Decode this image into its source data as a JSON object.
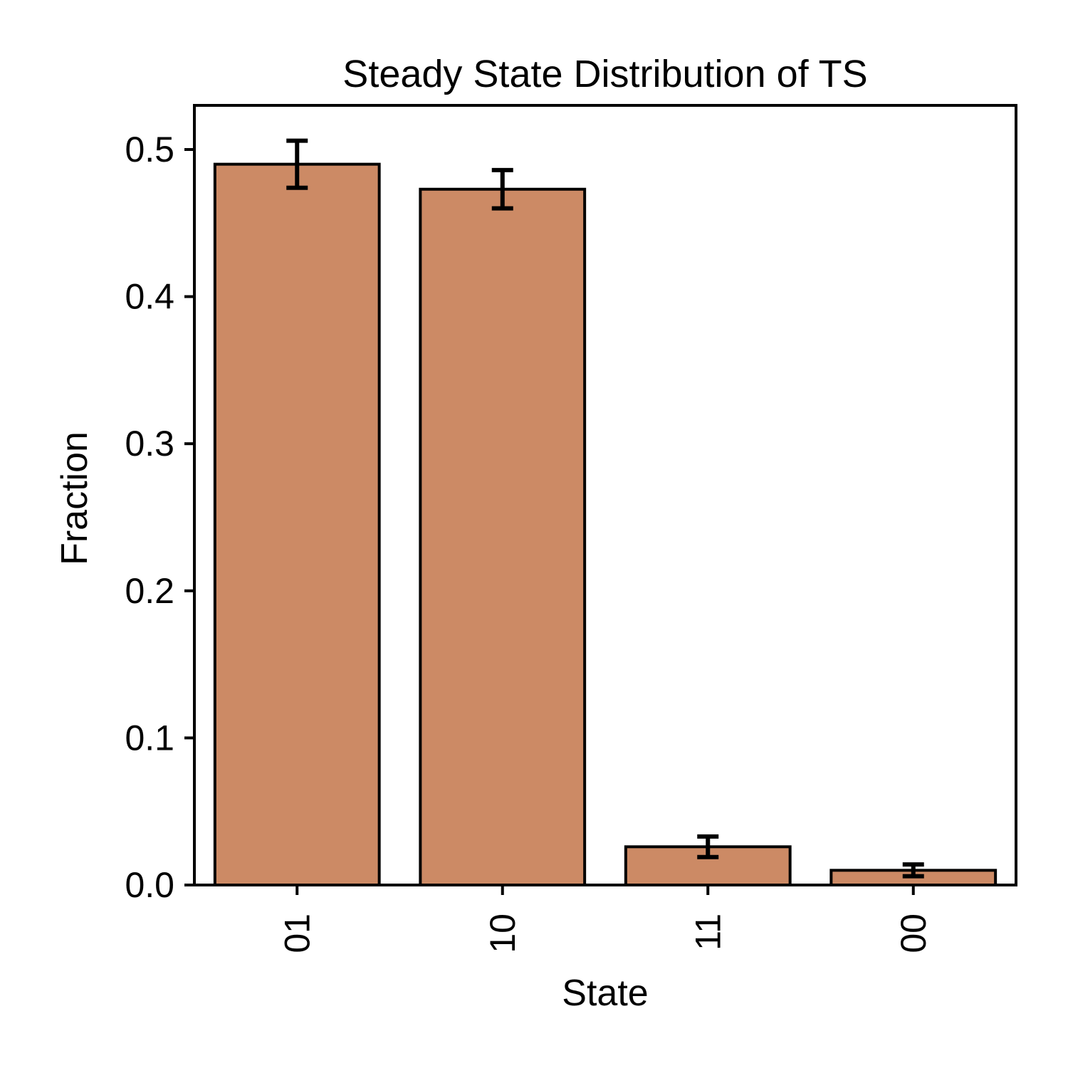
{
  "chart_data": {
    "type": "bar",
    "title": "Steady State Distribution of TS",
    "xlabel": "State",
    "ylabel": "Fraction",
    "categories": [
      "01",
      "10",
      "11",
      "00"
    ],
    "values": [
      0.49,
      0.473,
      0.026,
      0.01
    ],
    "errors": [
      0.016,
      0.013,
      0.007,
      0.004
    ],
    "ylim": [
      0,
      0.53
    ],
    "yticks": [
      "0.0",
      "0.1",
      "0.2",
      "0.3",
      "0.4",
      "0.5"
    ],
    "bar_color": "#cc8a65",
    "edge_color": "#000000",
    "grid": false,
    "legend": false
  }
}
